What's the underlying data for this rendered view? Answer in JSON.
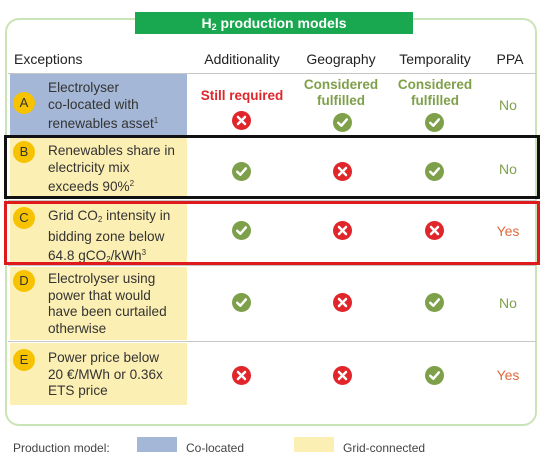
{
  "title": {
    "prefix": "H",
    "subscript": "2",
    "suffix": " production models"
  },
  "headers": {
    "exceptions": "Exceptions",
    "additionality": "Additionality",
    "geography": "Geography",
    "temporality": "Temporality",
    "ppa": "PPA"
  },
  "rows": [
    {
      "letter": "A",
      "lines": [
        "Electrolyser",
        "co-located with",
        "renewables asset"
      ],
      "footnote": "1",
      "additionality_label": "Still required",
      "geography_label": [
        "Considered",
        "fulfilled"
      ],
      "temporality_label": [
        "Considered",
        "fulfilled"
      ],
      "additionality": "cross",
      "geography": "check",
      "temporality": "check",
      "ppa": "No"
    },
    {
      "letter": "B",
      "lines": [
        "Renewables share in",
        "electricity mix",
        "exceeds 90%"
      ],
      "footnote": "2",
      "additionality": "check",
      "geography": "cross",
      "temporality": "check",
      "ppa": "No"
    },
    {
      "letter": "C",
      "line1_prefix": "Grid CO",
      "line1_sub": "2",
      "line1_suffix": " intensity in",
      "line2": "bidding zone below",
      "line3_prefix": "64.8 gCO",
      "line3_sub": "2",
      "line3_suffix": "/kWh",
      "footnote": "3",
      "additionality": "check",
      "geography": "cross",
      "temporality": "cross",
      "ppa": "Yes"
    },
    {
      "letter": "D",
      "lines": [
        "Electrolyser using",
        "power that would",
        "have been curtailed",
        "otherwise"
      ],
      "additionality": "check",
      "geography": "cross",
      "temporality": "check",
      "ppa": "No"
    },
    {
      "letter": "E",
      "lines": [
        "Power price below",
        "20 €/MWh or 0.36x",
        "ETS price"
      ],
      "additionality": "cross",
      "geography": "cross",
      "temporality": "check",
      "ppa": "Yes"
    }
  ],
  "legend": {
    "label": "Production model:",
    "colocated": "Co-located",
    "gridconnected": "Grid-connected"
  },
  "colors": {
    "banner": "#19a84f",
    "check": "#7fa04a",
    "cross": "#e0262b",
    "colocated": "#a4b7d6",
    "gridconnected": "#fcefb3",
    "highlight_black": "#111111",
    "highlight_red": "#e0191d"
  },
  "icons": {
    "check": "check-circle-icon",
    "cross": "cross-circle-icon"
  }
}
